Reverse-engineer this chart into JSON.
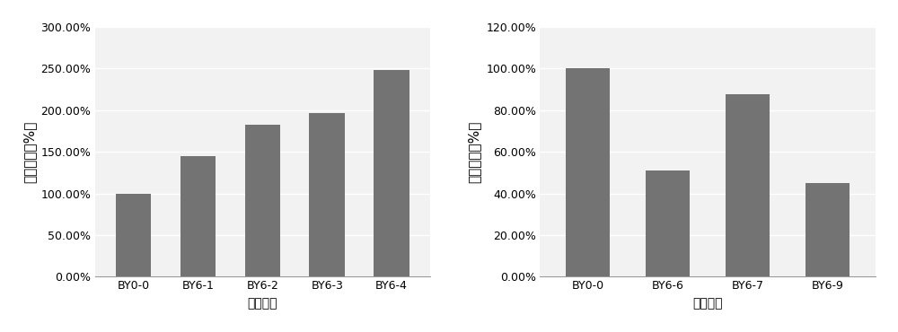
{
  "chart1": {
    "categories": [
      "BY0-0",
      "BY6-1",
      "BY6-2",
      "BY6-3",
      "BY6-4"
    ],
    "values": [
      100.0,
      145.0,
      183.0,
      197.0,
      248.0
    ],
    "ylabel": "相对活性（%）",
    "xlabel": "样品编号",
    "ylim": [
      0,
      300
    ],
    "yticks": [
      0,
      50,
      100,
      150,
      200,
      250,
      300
    ],
    "ytick_labels": [
      "0.00%",
      "50.00%",
      "100.00%",
      "150.00%",
      "200.00%",
      "250.00%",
      "300.00%"
    ]
  },
  "chart2": {
    "categories": [
      "BY0-0",
      "BY6-6",
      "BY6-7",
      "BY6-9"
    ],
    "values": [
      100.0,
      51.0,
      87.5,
      45.0
    ],
    "ylabel": "相对活性（%）",
    "xlabel": "样品编号",
    "ylim": [
      0,
      120
    ],
    "yticks": [
      0,
      20,
      40,
      60,
      80,
      100,
      120
    ],
    "ytick_labels": [
      "0.00%",
      "20.00%",
      "40.00%",
      "60.00%",
      "80.00%",
      "100.00%",
      "120.00%"
    ]
  },
  "bar_color": "#737373",
  "fig_background": "#ffffff",
  "plot_background": "#f2f2f2",
  "grid_color": "#ffffff",
  "font_size_label": 10,
  "font_size_tick": 9,
  "font_size_ylabel": 11
}
